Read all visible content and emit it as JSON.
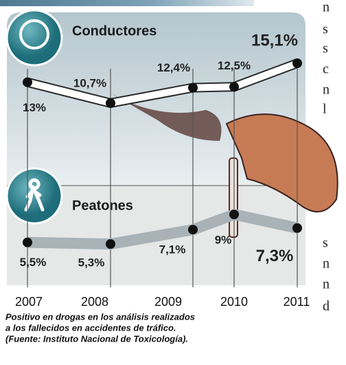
{
  "chart_data": {
    "type": "line",
    "categories": [
      "2007",
      "2008",
      "2009",
      "2010",
      "2011"
    ],
    "series": [
      {
        "name": "Conductores",
        "color": "#ffffff",
        "values": [
          13,
          10.7,
          12.4,
          12.5,
          15.1
        ],
        "value_labels": [
          "13%",
          "10,7%",
          "12,4%",
          "12,5%",
          "15,1%"
        ]
      },
      {
        "name": "Peatones",
        "color": "#a9b2b6",
        "values": [
          5.5,
          5.3,
          7.1,
          9,
          7.3
        ],
        "value_labels": [
          "5,5%",
          "5,3%",
          "7,1%",
          "9%",
          "7,3%"
        ]
      }
    ]
  },
  "caption": [
    "Positivo en drogas en los análisis realizados",
    "a los fallecidos en accidentes de tráfico.",
    "(Fuente: Instituto Nacional de Toxicología)."
  ],
  "side_text": [
    "n",
    "s",
    "s",
    "c",
    "n",
    "l",
    "s",
    "n",
    "n",
    "d"
  ]
}
